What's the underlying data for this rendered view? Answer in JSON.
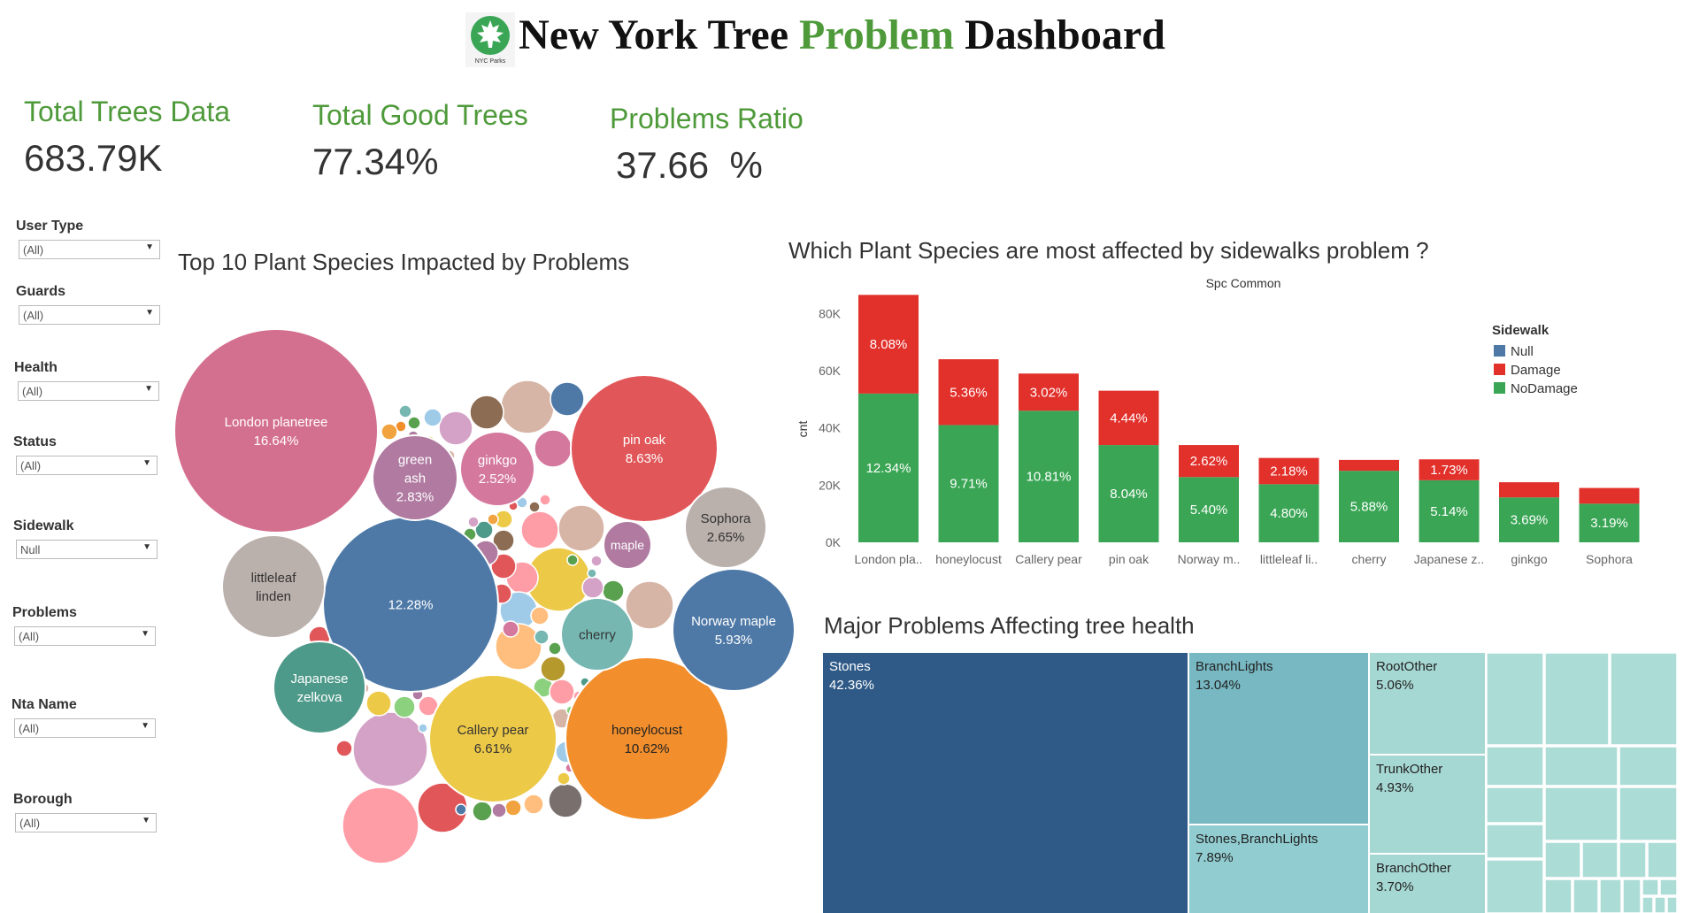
{
  "header": {
    "title_part1": "New York Tree ",
    "title_part2": "Problem",
    "title_part3": " Dashboard",
    "logo_text": "NYC Parks"
  },
  "kpis": [
    {
      "label": "Total Trees Data",
      "value": "683.79K"
    },
    {
      "label": "Total Good Trees",
      "value": "77.34%"
    },
    {
      "label": "Problems Ratio",
      "value": "37.66  %"
    }
  ],
  "filters": [
    {
      "label": "User Type",
      "value": "(All)"
    },
    {
      "label": "Guards",
      "value": "(All)"
    },
    {
      "label": "Health",
      "value": "(All)"
    },
    {
      "label": "Status",
      "value": "(All)"
    },
    {
      "label": "Sidewalk",
      "value": "Null"
    },
    {
      "label": "Problems",
      "value": "(All)"
    },
    {
      "label": "Nta Name",
      "value": "(All)"
    },
    {
      "label": "Borough",
      "value": "(All)"
    }
  ],
  "colors": {
    "green": "#3aa655",
    "red": "#e2302b",
    "null_blue": "#4e79a7",
    "accent_green": "#4e9a3a"
  },
  "chart_data": [
    {
      "type": "bubble",
      "title": "Top 10 Plant Species Impacted by Problems",
      "labeled_bubbles": [
        {
          "label": "London planetree",
          "value": "16.64%"
        },
        {
          "label": "",
          "value": "12.28%"
        },
        {
          "label": "honeylocust",
          "value": "10.62%"
        },
        {
          "label": "pin oak",
          "value": "8.63%"
        },
        {
          "label": "Callery pear",
          "value": "6.61%"
        },
        {
          "label": "Norway maple",
          "value": "5.93%"
        },
        {
          "label": "green ash",
          "value": "2.83%"
        },
        {
          "label": "Sophora",
          "value": "2.65%"
        },
        {
          "label": "ginkgo",
          "value": "2.52%"
        },
        {
          "label": "littleleaf linden",
          "value": ""
        },
        {
          "label": "Japanese zelkova",
          "value": ""
        },
        {
          "label": "cherry",
          "value": ""
        },
        {
          "label": "maple",
          "value": ""
        }
      ]
    },
    {
      "type": "bar",
      "stacked": true,
      "title": "Which Plant Species are most affected by sidewalks problem ?",
      "subtitle": "Spc Common",
      "ylabel": "cnt",
      "ylim": [
        0,
        90000
      ],
      "yticks": [
        "0K",
        "20K",
        "40K",
        "60K",
        "80K"
      ],
      "legend_title": "Sidewalk",
      "legend": [
        "Null",
        "Damage",
        "NoDamage"
      ],
      "categories": [
        "London pla..",
        "honeylocust",
        "Callery pear",
        "pin oak",
        "Norway m..",
        "littleleaf li..",
        "cherry",
        "Japanese z..",
        "ginkgo",
        "Sophora"
      ],
      "series": [
        {
          "name": "NoDamage",
          "values": [
            52000,
            41000,
            46000,
            34000,
            22800,
            20300,
            25000,
            21700,
            15700,
            13500
          ],
          "labels": [
            "12.34%",
            "9.71%",
            "10.81%",
            "8.04%",
            "5.40%",
            "4.80%",
            "5.88%",
            "5.14%",
            "3.69%",
            "3.19%"
          ]
        },
        {
          "name": "Damage",
          "values": [
            34500,
            23000,
            13000,
            19000,
            11200,
            9200,
            3800,
            7300,
            5300,
            5500
          ],
          "labels": [
            "8.08%",
            "5.36%",
            "3.02%",
            "4.44%",
            "2.62%",
            "2.18%",
            "",
            "1.73%",
            "",
            ""
          ]
        }
      ]
    },
    {
      "type": "treemap",
      "title": "Major Problems Affecting tree health",
      "items": [
        {
          "label": "Stones",
          "value": "42.36%"
        },
        {
          "label": "BranchLights",
          "value": "13.04%"
        },
        {
          "label": "Stones,BranchLights",
          "value": "7.89%"
        },
        {
          "label": "RootOther",
          "value": "5.06%"
        },
        {
          "label": "TrunkOther",
          "value": "4.93%"
        },
        {
          "label": "BranchOther",
          "value": "3.70%"
        }
      ]
    }
  ]
}
